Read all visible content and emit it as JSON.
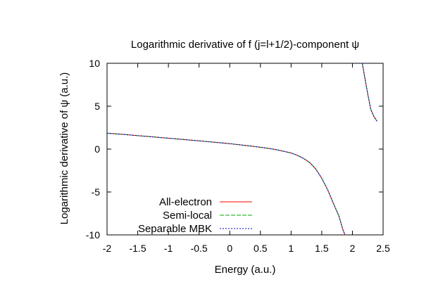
{
  "chart_data": {
    "type": "line",
    "title": "Logarithmic derivative of f (j=l+1/2)-component ψ",
    "xlabel": "Energy (a.u.)",
    "ylabel": "Logarithmic derivative of ψ (a.u.)",
    "xlim": [
      -2,
      2.5
    ],
    "ylim": [
      -10,
      10
    ],
    "xticks": [
      "-2",
      "-1.5",
      "-1",
      "-0.5",
      "0",
      "0.5",
      "1",
      "1.5",
      "2",
      "2.5"
    ],
    "yticks": [
      "-10",
      "-5",
      "0",
      "5",
      "10"
    ],
    "grid": false,
    "legend_position": "bottom-left",
    "series": [
      {
        "name": "All-electron",
        "color": "#ff0000",
        "dash": "solid",
        "segments": [
          [
            [
              -2.0,
              1.85
            ],
            [
              -1.75,
              1.72
            ],
            [
              -1.5,
              1.57
            ],
            [
              -1.25,
              1.42
            ],
            [
              -1.0,
              1.27
            ],
            [
              -0.75,
              1.12
            ],
            [
              -0.5,
              0.96
            ],
            [
              -0.25,
              0.8
            ],
            [
              0.0,
              0.63
            ],
            [
              0.25,
              0.43
            ],
            [
              0.5,
              0.22
            ],
            [
              0.75,
              -0.05
            ],
            [
              1.0,
              -0.45
            ],
            [
              1.1,
              -0.72
            ],
            [
              1.2,
              -1.07
            ],
            [
              1.3,
              -1.55
            ],
            [
              1.4,
              -2.3
            ],
            [
              1.5,
              -3.4
            ],
            [
              1.6,
              -4.8
            ],
            [
              1.7,
              -6.5
            ],
            [
              1.78,
              -7.8
            ],
            [
              1.82,
              -8.8
            ],
            [
              1.85,
              -9.5
            ],
            [
              1.88,
              -10.0
            ]
          ],
          [
            [
              2.16,
              10.0
            ],
            [
              2.2,
              8.4
            ],
            [
              2.25,
              6.4
            ],
            [
              2.3,
              4.6
            ],
            [
              2.35,
              3.8
            ],
            [
              2.4,
              3.25
            ]
          ]
        ]
      },
      {
        "name": "Semi-local",
        "color": "#00aa00",
        "dash": "6,2",
        "segments": [
          [
            [
              -2.0,
              1.85
            ],
            [
              -1.75,
              1.72
            ],
            [
              -1.5,
              1.57
            ],
            [
              -1.25,
              1.42
            ],
            [
              -1.0,
              1.27
            ],
            [
              -0.75,
              1.12
            ],
            [
              -0.5,
              0.96
            ],
            [
              -0.25,
              0.8
            ],
            [
              0.0,
              0.63
            ],
            [
              0.25,
              0.43
            ],
            [
              0.5,
              0.22
            ],
            [
              0.75,
              -0.05
            ],
            [
              1.0,
              -0.45
            ],
            [
              1.1,
              -0.72
            ],
            [
              1.2,
              -1.07
            ],
            [
              1.3,
              -1.55
            ],
            [
              1.4,
              -2.3
            ],
            [
              1.5,
              -3.4
            ],
            [
              1.6,
              -4.8
            ],
            [
              1.7,
              -6.5
            ],
            [
              1.78,
              -7.8
            ],
            [
              1.82,
              -8.8
            ],
            [
              1.85,
              -9.5
            ],
            [
              1.88,
              -10.0
            ]
          ],
          [
            [
              2.16,
              10.0
            ],
            [
              2.2,
              8.4
            ],
            [
              2.25,
              6.4
            ],
            [
              2.3,
              4.6
            ],
            [
              2.35,
              3.8
            ],
            [
              2.4,
              3.25
            ]
          ]
        ]
      },
      {
        "name": "Separable MBK",
        "color": "#0000cc",
        "dash": "2,2",
        "segments": [
          [
            [
              -2.0,
              1.85
            ],
            [
              -1.75,
              1.72
            ],
            [
              -1.5,
              1.57
            ],
            [
              -1.25,
              1.42
            ],
            [
              -1.0,
              1.27
            ],
            [
              -0.75,
              1.12
            ],
            [
              -0.5,
              0.96
            ],
            [
              -0.25,
              0.8
            ],
            [
              0.0,
              0.63
            ],
            [
              0.25,
              0.43
            ],
            [
              0.5,
              0.22
            ],
            [
              0.75,
              -0.05
            ],
            [
              1.0,
              -0.45
            ],
            [
              1.1,
              -0.72
            ],
            [
              1.2,
              -1.07
            ],
            [
              1.3,
              -1.55
            ],
            [
              1.4,
              -2.3
            ],
            [
              1.5,
              -3.4
            ],
            [
              1.6,
              -4.8
            ],
            [
              1.7,
              -6.5
            ],
            [
              1.78,
              -7.8
            ],
            [
              1.82,
              -8.8
            ],
            [
              1.85,
              -9.5
            ],
            [
              1.88,
              -10.0
            ]
          ],
          [
            [
              2.16,
              10.0
            ],
            [
              2.2,
              8.4
            ],
            [
              2.25,
              6.4
            ],
            [
              2.3,
              4.6
            ],
            [
              2.35,
              3.8
            ],
            [
              2.4,
              3.25
            ]
          ]
        ]
      }
    ]
  }
}
